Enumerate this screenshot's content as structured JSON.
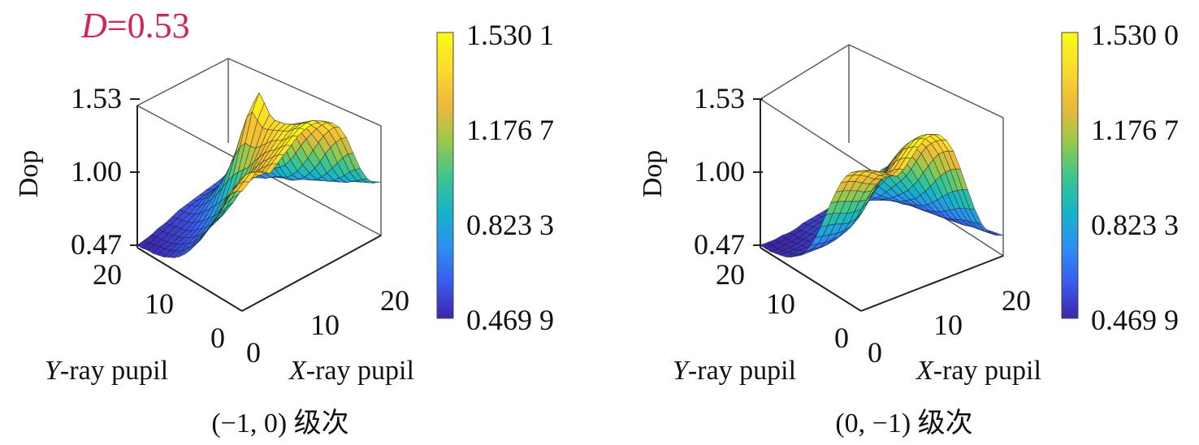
{
  "annotation": {
    "var": "D",
    "text": "=0.53"
  },
  "chart_data": [
    {
      "type": "surface",
      "caption": "(−1, 0) 级次",
      "zlabel": "Dop",
      "xlabel": {
        "var": "X",
        "rest": "-ray pupil"
      },
      "ylabel": {
        "var": "Y",
        "rest": "-ray pupil"
      },
      "xlim": [
        0,
        20
      ],
      "ylim": [
        0,
        20
      ],
      "zlim": [
        0.47,
        1.53
      ],
      "x_ticks": [
        "0",
        "10",
        "20"
      ],
      "y_ticks": [
        "0",
        "10",
        "20"
      ],
      "z_ticks": [
        "0.47",
        "1.00",
        "1.53"
      ],
      "colorbar": {
        "min": 0.4699,
        "max": 1.5301,
        "ticks": [
          "1.530 1",
          "1.176 7",
          "0.823 3",
          "0.469 9"
        ]
      },
      "colormap": [
        "#3e26a8",
        "#3b5af0",
        "#2d8ff0",
        "#16b4c8",
        "#40c58b",
        "#9ec84a",
        "#f0b83a",
        "#fbdc2b",
        "#f9fb14"
      ],
      "grid_size": 21,
      "surface": "peak_center_plateau_back",
      "z": [
        [
          1.32,
          1.36,
          1.4,
          1.38,
          1.34,
          1.38,
          1.42,
          1.46,
          1.5,
          1.52,
          1.53,
          1.52,
          1.5,
          1.46,
          1.4,
          1.3,
          1.16,
          1.02,
          0.92,
          0.86,
          0.84
        ],
        [
          1.3,
          1.34,
          1.38,
          1.36,
          1.32,
          1.36,
          1.4,
          1.44,
          1.48,
          1.51,
          1.52,
          1.51,
          1.48,
          1.44,
          1.38,
          1.27,
          1.13,
          0.99,
          0.89,
          0.84,
          0.82
        ],
        [
          1.26,
          1.3,
          1.34,
          1.32,
          1.28,
          1.32,
          1.36,
          1.4,
          1.44,
          1.48,
          1.49,
          1.48,
          1.45,
          1.4,
          1.33,
          1.22,
          1.08,
          0.95,
          0.86,
          0.82,
          0.8
        ],
        [
          1.2,
          1.24,
          1.28,
          1.27,
          1.24,
          1.28,
          1.32,
          1.36,
          1.4,
          1.44,
          1.46,
          1.45,
          1.41,
          1.35,
          1.27,
          1.16,
          1.02,
          0.9,
          0.83,
          0.8,
          0.79
        ],
        [
          1.12,
          1.16,
          1.21,
          1.21,
          1.19,
          1.23,
          1.28,
          1.33,
          1.38,
          1.42,
          1.44,
          1.42,
          1.37,
          1.29,
          1.2,
          1.09,
          0.96,
          0.86,
          0.8,
          0.78,
          0.78
        ],
        [
          1.03,
          1.07,
          1.12,
          1.13,
          1.12,
          1.17,
          1.23,
          1.29,
          1.35,
          1.4,
          1.42,
          1.39,
          1.32,
          1.23,
          1.12,
          1.01,
          0.9,
          0.82,
          0.78,
          0.77,
          0.77
        ],
        [
          0.94,
          0.98,
          1.03,
          1.05,
          1.05,
          1.1,
          1.17,
          1.24,
          1.31,
          1.38,
          1.41,
          1.36,
          1.27,
          1.16,
          1.04,
          0.94,
          0.85,
          0.79,
          0.76,
          0.76,
          0.77
        ],
        [
          0.86,
          0.9,
          0.94,
          0.96,
          0.97,
          1.02,
          1.1,
          1.18,
          1.27,
          1.36,
          1.4,
          1.33,
          1.21,
          1.08,
          0.97,
          0.88,
          0.81,
          0.77,
          0.75,
          0.76,
          0.77
        ],
        [
          0.78,
          0.82,
          0.86,
          0.88,
          0.9,
          0.95,
          1.03,
          1.12,
          1.23,
          1.35,
          1.42,
          1.3,
          1.15,
          1.01,
          0.9,
          0.83,
          0.78,
          0.75,
          0.75,
          0.76,
          0.78
        ],
        [
          0.72,
          0.75,
          0.79,
          0.81,
          0.83,
          0.88,
          0.97,
          1.08,
          1.22,
          1.38,
          1.48,
          1.3,
          1.1,
          0.95,
          0.85,
          0.79,
          0.76,
          0.74,
          0.75,
          0.77,
          0.79
        ],
        [
          0.66,
          0.69,
          0.72,
          0.75,
          0.77,
          0.82,
          0.91,
          1.04,
          1.22,
          1.42,
          1.53,
          1.32,
          1.08,
          0.91,
          0.81,
          0.76,
          0.74,
          0.74,
          0.76,
          0.78,
          0.8
        ],
        [
          0.61,
          0.64,
          0.67,
          0.69,
          0.72,
          0.77,
          0.86,
          0.99,
          1.17,
          1.36,
          1.44,
          1.25,
          1.03,
          0.88,
          0.79,
          0.74,
          0.73,
          0.74,
          0.76,
          0.79,
          0.81
        ],
        [
          0.57,
          0.6,
          0.62,
          0.65,
          0.68,
          0.73,
          0.81,
          0.93,
          1.08,
          1.23,
          1.29,
          1.14,
          0.97,
          0.84,
          0.77,
          0.73,
          0.72,
          0.74,
          0.77,
          0.8,
          0.82
        ],
        [
          0.54,
          0.56,
          0.59,
          0.61,
          0.64,
          0.69,
          0.76,
          0.86,
          0.98,
          1.08,
          1.12,
          1.02,
          0.9,
          0.8,
          0.74,
          0.71,
          0.71,
          0.74,
          0.77,
          0.8,
          0.82
        ],
        [
          0.52,
          0.54,
          0.56,
          0.58,
          0.61,
          0.65,
          0.71,
          0.79,
          0.88,
          0.95,
          0.97,
          0.91,
          0.83,
          0.76,
          0.71,
          0.7,
          0.71,
          0.74,
          0.77,
          0.8,
          0.82
        ],
        [
          0.5,
          0.52,
          0.54,
          0.56,
          0.58,
          0.62,
          0.67,
          0.73,
          0.8,
          0.85,
          0.86,
          0.82,
          0.77,
          0.72,
          0.69,
          0.69,
          0.71,
          0.74,
          0.77,
          0.8,
          0.81
        ],
        [
          0.49,
          0.51,
          0.52,
          0.54,
          0.56,
          0.59,
          0.63,
          0.68,
          0.73,
          0.76,
          0.77,
          0.75,
          0.72,
          0.69,
          0.68,
          0.69,
          0.71,
          0.74,
          0.77,
          0.79,
          0.8
        ],
        [
          0.48,
          0.5,
          0.51,
          0.53,
          0.55,
          0.57,
          0.6,
          0.64,
          0.67,
          0.7,
          0.7,
          0.69,
          0.68,
          0.67,
          0.67,
          0.69,
          0.71,
          0.73,
          0.76,
          0.78,
          0.79
        ],
        [
          0.48,
          0.49,
          0.5,
          0.52,
          0.54,
          0.56,
          0.58,
          0.61,
          0.63,
          0.65,
          0.65,
          0.65,
          0.65,
          0.65,
          0.67,
          0.68,
          0.7,
          0.73,
          0.75,
          0.77,
          0.78
        ],
        [
          0.47,
          0.48,
          0.5,
          0.51,
          0.53,
          0.55,
          0.57,
          0.59,
          0.6,
          0.61,
          0.62,
          0.62,
          0.63,
          0.64,
          0.66,
          0.68,
          0.7,
          0.72,
          0.74,
          0.76,
          0.77
        ],
        [
          0.47,
          0.48,
          0.49,
          0.51,
          0.52,
          0.54,
          0.56,
          0.57,
          0.58,
          0.59,
          0.6,
          0.61,
          0.62,
          0.64,
          0.66,
          0.67,
          0.69,
          0.71,
          0.73,
          0.75,
          0.76
        ]
      ]
    },
    {
      "type": "surface",
      "caption": "(0, −1) 级次",
      "zlabel": "Dop",
      "xlabel": {
        "var": "X",
        "rest": "-ray pupil"
      },
      "ylabel": {
        "var": "Y",
        "rest": "-ray pupil"
      },
      "xlim": [
        0,
        20
      ],
      "ylim": [
        0,
        20
      ],
      "zlim": [
        0.47,
        1.53
      ],
      "x_ticks": [
        "0",
        "10",
        "20"
      ],
      "y_ticks": [
        "0",
        "10",
        "20"
      ],
      "z_ticks": [
        "0.47",
        "1.00",
        "1.53"
      ],
      "colorbar": {
        "min": 0.4699,
        "max": 1.53,
        "ticks": [
          "1.530 0",
          "1.176 7",
          "0.823 3",
          "0.469 9"
        ]
      },
      "colormap": [
        "#3e26a8",
        "#3b5af0",
        "#2d8ff0",
        "#16b4c8",
        "#40c58b",
        "#9ec84a",
        "#f0b83a",
        "#fbdc2b",
        "#f9fb14"
      ],
      "grid_size": 21,
      "surface": "ridge_back_valley_center",
      "z": [
        [
          1.46,
          1.45,
          1.43,
          1.4,
          1.36,
          1.33,
          1.36,
          1.42,
          1.48,
          1.52,
          1.53,
          1.51,
          1.45,
          1.35,
          1.2,
          1.03,
          0.87,
          0.74,
          0.66,
          0.62,
          0.6
        ],
        [
          1.44,
          1.43,
          1.41,
          1.38,
          1.34,
          1.31,
          1.34,
          1.4,
          1.46,
          1.5,
          1.51,
          1.49,
          1.43,
          1.33,
          1.18,
          1.01,
          0.85,
          0.73,
          0.65,
          0.61,
          0.59
        ],
        [
          1.41,
          1.4,
          1.38,
          1.35,
          1.31,
          1.28,
          1.31,
          1.37,
          1.43,
          1.47,
          1.48,
          1.46,
          1.4,
          1.3,
          1.15,
          0.98,
          0.83,
          0.71,
          0.64,
          0.6,
          0.58
        ],
        [
          1.36,
          1.35,
          1.33,
          1.3,
          1.26,
          1.24,
          1.27,
          1.33,
          1.39,
          1.43,
          1.44,
          1.42,
          1.36,
          1.26,
          1.11,
          0.95,
          0.81,
          0.7,
          0.63,
          0.59,
          0.57
        ],
        [
          1.29,
          1.28,
          1.26,
          1.23,
          1.2,
          1.18,
          1.21,
          1.27,
          1.33,
          1.38,
          1.39,
          1.37,
          1.31,
          1.2,
          1.06,
          0.91,
          0.78,
          0.68,
          0.62,
          0.58,
          0.56
        ],
        [
          1.2,
          1.19,
          1.17,
          1.15,
          1.12,
          1.11,
          1.14,
          1.2,
          1.27,
          1.32,
          1.33,
          1.31,
          1.24,
          1.13,
          1.0,
          0.87,
          0.75,
          0.66,
          0.6,
          0.57,
          0.55
        ],
        [
          1.1,
          1.09,
          1.07,
          1.05,
          1.03,
          1.02,
          1.06,
          1.12,
          1.19,
          1.25,
          1.27,
          1.24,
          1.16,
          1.06,
          0.94,
          0.82,
          0.72,
          0.64,
          0.59,
          0.56,
          0.54
        ],
        [
          0.99,
          0.98,
          0.96,
          0.94,
          0.93,
          0.93,
          0.97,
          1.03,
          1.11,
          1.18,
          1.2,
          1.16,
          1.08,
          0.98,
          0.88,
          0.78,
          0.69,
          0.62,
          0.58,
          0.55,
          0.53
        ],
        [
          0.88,
          0.87,
          0.86,
          0.84,
          0.83,
          0.84,
          0.88,
          0.95,
          1.03,
          1.11,
          1.14,
          1.09,
          1.01,
          0.92,
          0.83,
          0.74,
          0.67,
          0.61,
          0.57,
          0.54,
          0.52
        ],
        [
          0.78,
          0.77,
          0.76,
          0.75,
          0.75,
          0.76,
          0.8,
          0.87,
          0.96,
          1.05,
          1.09,
          1.03,
          0.95,
          0.86,
          0.78,
          0.71,
          0.65,
          0.6,
          0.56,
          0.53,
          0.52
        ],
        [
          0.7,
          0.69,
          0.68,
          0.68,
          0.68,
          0.7,
          0.74,
          0.81,
          0.9,
          1.0,
          1.05,
          0.98,
          0.9,
          0.82,
          0.75,
          0.69,
          0.63,
          0.59,
          0.55,
          0.53,
          0.51
        ],
        [
          0.63,
          0.63,
          0.62,
          0.62,
          0.63,
          0.65,
          0.69,
          0.75,
          0.84,
          0.93,
          0.97,
          0.92,
          0.85,
          0.78,
          0.72,
          0.67,
          0.62,
          0.58,
          0.55,
          0.52,
          0.51
        ],
        [
          0.58,
          0.58,
          0.58,
          0.58,
          0.59,
          0.61,
          0.65,
          0.7,
          0.78,
          0.86,
          0.89,
          0.86,
          0.8,
          0.74,
          0.69,
          0.65,
          0.61,
          0.57,
          0.54,
          0.52,
          0.5
        ],
        [
          0.55,
          0.55,
          0.55,
          0.55,
          0.56,
          0.58,
          0.61,
          0.66,
          0.72,
          0.79,
          0.82,
          0.8,
          0.75,
          0.71,
          0.67,
          0.63,
          0.6,
          0.57,
          0.54,
          0.52,
          0.5
        ],
        [
          0.52,
          0.52,
          0.52,
          0.53,
          0.54,
          0.56,
          0.59,
          0.63,
          0.68,
          0.73,
          0.76,
          0.74,
          0.71,
          0.68,
          0.65,
          0.62,
          0.59,
          0.56,
          0.54,
          0.52,
          0.5
        ],
        [
          0.5,
          0.5,
          0.51,
          0.51,
          0.52,
          0.54,
          0.57,
          0.6,
          0.64,
          0.68,
          0.7,
          0.69,
          0.67,
          0.65,
          0.63,
          0.61,
          0.58,
          0.56,
          0.54,
          0.52,
          0.5
        ],
        [
          0.49,
          0.49,
          0.49,
          0.5,
          0.51,
          0.53,
          0.55,
          0.58,
          0.61,
          0.64,
          0.65,
          0.65,
          0.64,
          0.63,
          0.61,
          0.6,
          0.58,
          0.56,
          0.54,
          0.52,
          0.5
        ],
        [
          0.48,
          0.48,
          0.48,
          0.49,
          0.5,
          0.52,
          0.54,
          0.56,
          0.58,
          0.6,
          0.61,
          0.61,
          0.61,
          0.6,
          0.6,
          0.59,
          0.57,
          0.55,
          0.53,
          0.52,
          0.5
        ],
        [
          0.47,
          0.47,
          0.48,
          0.48,
          0.49,
          0.51,
          0.53,
          0.54,
          0.56,
          0.57,
          0.58,
          0.58,
          0.58,
          0.58,
          0.58,
          0.58,
          0.57,
          0.55,
          0.53,
          0.52,
          0.5
        ],
        [
          0.47,
          0.47,
          0.47,
          0.48,
          0.49,
          0.5,
          0.52,
          0.53,
          0.54,
          0.55,
          0.56,
          0.56,
          0.57,
          0.57,
          0.57,
          0.57,
          0.56,
          0.55,
          0.53,
          0.51,
          0.5
        ],
        [
          0.47,
          0.47,
          0.47,
          0.48,
          0.48,
          0.49,
          0.51,
          0.52,
          0.53,
          0.54,
          0.55,
          0.55,
          0.56,
          0.56,
          0.56,
          0.56,
          0.56,
          0.54,
          0.53,
          0.51,
          0.5
        ]
      ]
    }
  ]
}
